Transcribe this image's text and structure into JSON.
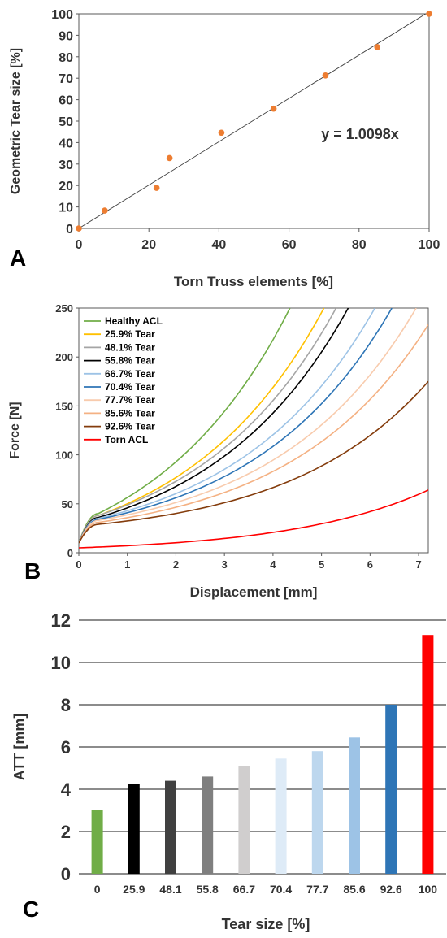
{
  "chart_data": [
    {
      "panel": "A",
      "type": "scatter",
      "xlabel": "Torn Truss elements [%]",
      "ylabel": "Geometric Tear size [%]",
      "xlim": [
        0,
        100
      ],
      "ylim": [
        0,
        100
      ],
      "xticks": [
        0,
        20,
        40,
        60,
        80,
        100
      ],
      "yticks": [
        0,
        10,
        20,
        30,
        40,
        50,
        60,
        70,
        80,
        90,
        100
      ],
      "points": [
        {
          "x": 0,
          "y": 0
        },
        {
          "x": 7.4,
          "y": 8.3
        },
        {
          "x": 22.2,
          "y": 18.9
        },
        {
          "x": 25.9,
          "y": 32.8
        },
        {
          "x": 40.7,
          "y": 44.6
        },
        {
          "x": 55.6,
          "y": 55.8
        },
        {
          "x": 70.4,
          "y": 71.3
        },
        {
          "x": 85.2,
          "y": 84.5
        },
        {
          "x": 100,
          "y": 100
        }
      ],
      "point_color": "#ED7D31",
      "trendline": {
        "slope": 1.0098,
        "label": "y = 1.0098x"
      },
      "grid": false
    },
    {
      "panel": "B",
      "type": "line",
      "xlabel": "Displacement [mm]",
      "ylabel": "Force [N]",
      "xlim": [
        0,
        7.2
      ],
      "ylim": [
        0,
        250
      ],
      "xticks": [
        0,
        1,
        2,
        3,
        4,
        5,
        6,
        7
      ],
      "yticks": [
        0,
        50,
        100,
        150,
        200,
        250
      ],
      "legend_position": "top-left",
      "series": [
        {
          "name": "Healthy ACL",
          "color": "#70AD47",
          "knee_x": 0.4,
          "knee_y": 40,
          "end_x": 4.35,
          "end_y": 250
        },
        {
          "name": "25.9% Tear",
          "color": "#FFC000",
          "knee_x": 0.4,
          "knee_y": 38,
          "end_x": 5.05,
          "end_y": 250
        },
        {
          "name": "48.1% Tear",
          "color": "#A5A5A5",
          "knee_x": 0.4,
          "knee_y": 38,
          "end_x": 5.3,
          "end_y": 250
        },
        {
          "name": "55.8% Tear",
          "color": "#000000",
          "knee_x": 0.4,
          "knee_y": 36,
          "end_x": 5.55,
          "end_y": 250
        },
        {
          "name": "66.7% Tear",
          "color": "#9DC3E6",
          "knee_x": 0.4,
          "knee_y": 35,
          "end_x": 6.1,
          "end_y": 250
        },
        {
          "name": "70.4% Tear",
          "color": "#2E75B6",
          "knee_x": 0.4,
          "knee_y": 34,
          "end_x": 6.45,
          "end_y": 250
        },
        {
          "name": "77.7% Tear",
          "color": "#F8CBAD",
          "knee_x": 0.4,
          "knee_y": 33,
          "end_x": 6.95,
          "end_y": 250
        },
        {
          "name": "85.6% Tear",
          "color": "#F4B183",
          "knee_x": 0.4,
          "knee_y": 31,
          "end_x": 7.2,
          "end_y": 233
        },
        {
          "name": "92.6% Tear",
          "color": "#843C0C",
          "knee_x": 0.4,
          "knee_y": 29,
          "end_x": 7.2,
          "end_y": 175
        },
        {
          "name": "Torn ACL",
          "color": "#FF0000",
          "knee_x": 0.0,
          "knee_y": 5,
          "end_x": 7.2,
          "end_y": 64
        }
      ],
      "grid": false
    },
    {
      "panel": "C",
      "type": "bar",
      "xlabel": "Tear size [%]",
      "ylabel": "ATT [mm]",
      "ylim": [
        0,
        12
      ],
      "yticks": [
        0,
        2,
        4,
        6,
        8,
        10,
        12
      ],
      "categories": [
        "0",
        "25.9",
        "48.1",
        "55.8",
        "66.7",
        "70.4",
        "77.7",
        "85.6",
        "92.6",
        "100"
      ],
      "values": [
        3.0,
        4.25,
        4.4,
        4.6,
        5.1,
        5.45,
        5.8,
        6.45,
        8.0,
        11.3
      ],
      "colors": [
        "#70AD47",
        "#000000",
        "#404040",
        "#7F7F7F",
        "#D0CECE",
        "#DEEBF7",
        "#BDD7EE",
        "#9DC3E6",
        "#2E75B6",
        "#FF0000"
      ],
      "grid": true
    }
  ]
}
